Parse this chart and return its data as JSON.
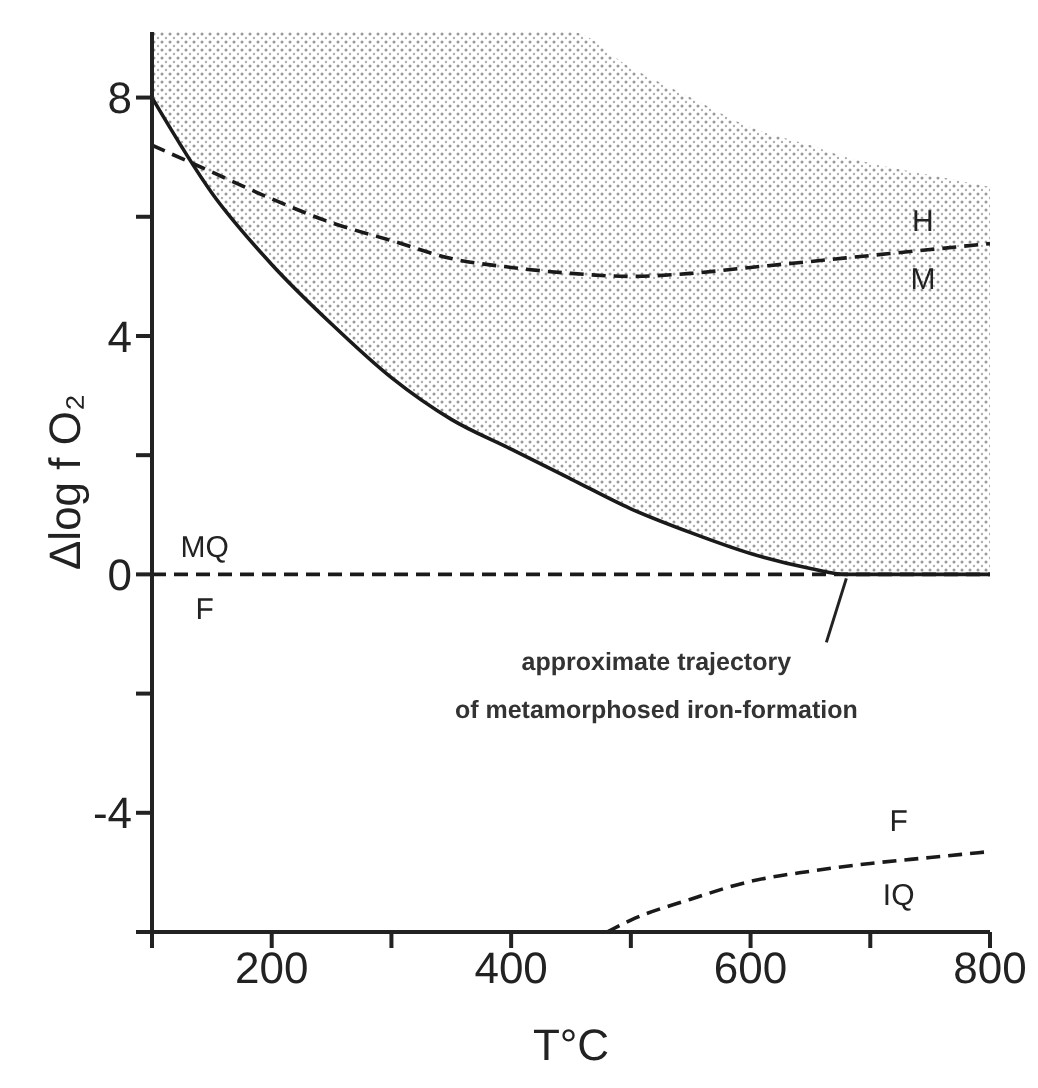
{
  "chart_data": {
    "type": "line",
    "xlabel": "T°C",
    "ylabel": "Δlog f O₂",
    "xlim": [
      100,
      800
    ],
    "ylim": [
      -6,
      9.1
    ],
    "xticks": [
      {
        "value": 100,
        "label": null
      },
      200,
      {
        "value": 300,
        "label": null
      },
      400,
      {
        "value": 500,
        "label": null
      },
      600,
      {
        "value": 700,
        "label": null
      },
      800
    ],
    "yticks": [
      {
        "value": -6,
        "label": null
      },
      -4,
      {
        "value": -2,
        "label": null
      },
      0,
      {
        "value": 2,
        "label": null
      },
      4,
      {
        "value": 6,
        "label": null
      },
      8
    ],
    "grid": false,
    "marker": "none",
    "series": [
      {
        "color": "#1a1a1a",
        "line_style": "solid",
        "x": [
          100,
          150,
          200,
          250,
          300,
          350,
          400,
          450,
          500,
          550,
          600,
          650,
          680,
          700,
          750,
          800
        ],
        "values": [
          8.0,
          6.4,
          5.2,
          4.2,
          3.3,
          2.6,
          2.1,
          1.6,
          1.1,
          0.7,
          0.35,
          0.1,
          0,
          0,
          0,
          0
        ],
        "lower": [
          8.0,
          6.4,
          5.2,
          4.2,
          3.3,
          2.6,
          2.1,
          1.6,
          1.1,
          0.7,
          0.35,
          0.1,
          0,
          0,
          0,
          0
        ],
        "upper": [
          9.1,
          9.1,
          9.1,
          9.1,
          9.1,
          9.1,
          9.1,
          9.1,
          8.5,
          8.0,
          7.5,
          7.2,
          7.0,
          6.9,
          6.7,
          6.5
        ]
      },
      {
        "color": "#1a1a1a",
        "line_style": "dashed",
        "x": [
          100,
          150,
          200,
          250,
          300,
          350,
          400,
          450,
          500,
          550,
          600,
          650,
          700,
          750,
          800
        ],
        "values": [
          7.2,
          6.75,
          6.3,
          5.9,
          5.6,
          5.3,
          5.15,
          5.05,
          5.0,
          5.05,
          5.15,
          5.25,
          5.35,
          5.45,
          5.55
        ]
      },
      {
        "color": "#1a1a1a",
        "line_style": "dashed",
        "x": [
          100,
          800
        ],
        "values": [
          0,
          0
        ]
      },
      {
        "color": "#1a1a1a",
        "line_style": "dashed",
        "x": [
          480,
          500,
          550,
          600,
          650,
          700,
          750,
          800
        ],
        "values": [
          -6,
          -5.8,
          -5.45,
          -5.15,
          -4.98,
          -4.85,
          -4.75,
          -4.65
        ]
      }
    ],
    "annotations": [
      "H",
      "M",
      "MQ",
      "F",
      {
        "text": "approximate trajectory\nof metamorphosed iron-formation",
        "x": 680,
        "y": 0
      },
      "F",
      "IQ"
    ]
  }
}
